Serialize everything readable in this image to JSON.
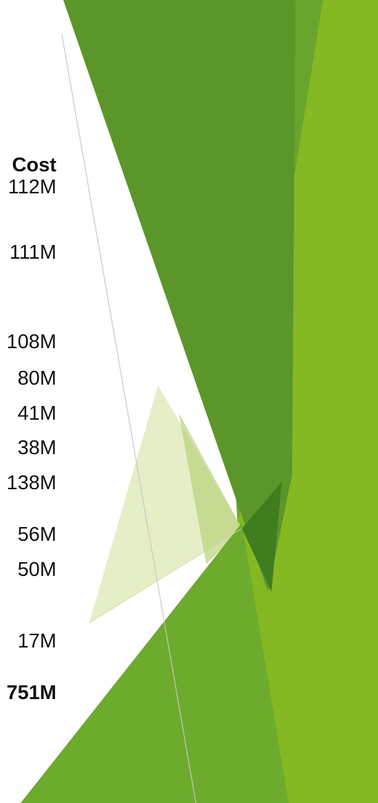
{
  "column_header": "Cost",
  "costs": [
    "112M",
    "111M",
    "108M",
    "80M",
    "41M",
    "38M",
    "138M",
    "56M",
    "50M",
    "17M"
  ],
  "total": "751M"
}
